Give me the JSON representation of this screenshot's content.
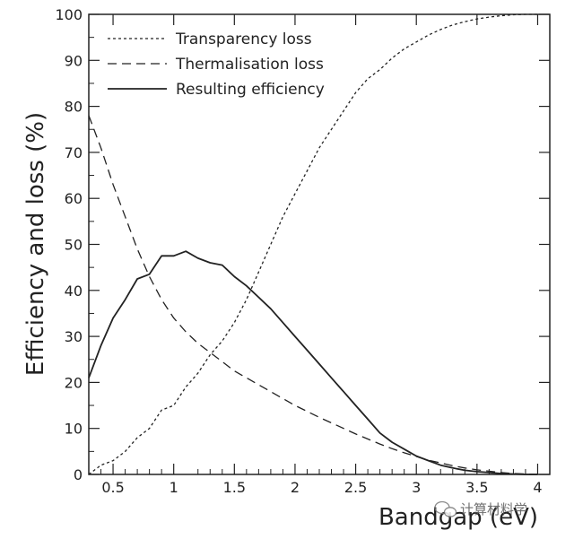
{
  "chart_data": {
    "type": "line",
    "xlabel": "Bandgap (eV)",
    "ylabel": "Efficiency and loss (%)",
    "xlim": [
      0.3,
      4.1
    ],
    "ylim": [
      0,
      100
    ],
    "x_ticks": [
      0.5,
      1,
      1.5,
      2,
      2.5,
      3,
      3.5,
      4
    ],
    "x_tick_labels": [
      "0.5",
      "1",
      "1.5",
      "2",
      "2.5",
      "3",
      "3.5",
      "4"
    ],
    "y_ticks": [
      0,
      10,
      20,
      30,
      40,
      50,
      60,
      70,
      80,
      90,
      100
    ],
    "y_tick_labels": [
      "0",
      "10",
      "20",
      "30",
      "40",
      "50",
      "60",
      "70",
      "80",
      "90",
      "100"
    ],
    "grid": false,
    "legend_position": "top-left",
    "series": [
      {
        "name": "Transparency loss",
        "style": "dotted",
        "x": [
          0.3,
          0.4,
          0.5,
          0.6,
          0.7,
          0.8,
          0.9,
          1.0,
          1.1,
          1.2,
          1.3,
          1.4,
          1.5,
          1.6,
          1.7,
          1.8,
          1.9,
          2.0,
          2.1,
          2.2,
          2.3,
          2.4,
          2.5,
          2.6,
          2.7,
          2.8,
          2.9,
          3.0,
          3.1,
          3.2,
          3.3,
          3.4,
          3.5,
          3.6,
          3.7,
          3.8,
          3.9,
          4.0
        ],
        "values": [
          0,
          2,
          3,
          5,
          8,
          10,
          14,
          15,
          19,
          22,
          26,
          29,
          33,
          38,
          44,
          50,
          56,
          61,
          66,
          71,
          75,
          79,
          83,
          86,
          88,
          90.5,
          92.5,
          94,
          95.5,
          96.7,
          97.7,
          98.4,
          99,
          99.4,
          99.7,
          99.9,
          100,
          100
        ]
      },
      {
        "name": "Thermalisation loss",
        "style": "dashed",
        "x": [
          0.3,
          0.4,
          0.5,
          0.6,
          0.7,
          0.8,
          0.9,
          1.0,
          1.1,
          1.2,
          1.3,
          1.4,
          1.5,
          1.6,
          1.7,
          1.8,
          1.9,
          2.0,
          2.1,
          2.2,
          2.3,
          2.4,
          2.5,
          2.6,
          2.7,
          2.8,
          2.9,
          3.0,
          3.1,
          3.2,
          3.3,
          3.4,
          3.5,
          3.6,
          3.7,
          3.8,
          3.9,
          4.0
        ],
        "values": [
          78,
          71,
          63,
          56,
          49,
          43,
          38,
          34,
          31,
          28.5,
          26.5,
          24.5,
          22.5,
          21,
          19.5,
          18,
          16.5,
          15,
          13.7,
          12.4,
          11.2,
          10,
          8.8,
          7.7,
          6.6,
          5.6,
          4.7,
          3.9,
          3.1,
          2.5,
          1.9,
          1.4,
          1.0,
          0.7,
          0.4,
          0.2,
          0.1,
          0
        ]
      },
      {
        "name": "Resulting efficiency",
        "style": "solid",
        "x": [
          0.3,
          0.4,
          0.5,
          0.6,
          0.7,
          0.8,
          0.9,
          1.0,
          1.1,
          1.2,
          1.3,
          1.4,
          1.5,
          1.6,
          1.7,
          1.8,
          1.9,
          2.0,
          2.1,
          2.2,
          2.3,
          2.4,
          2.5,
          2.6,
          2.7,
          2.8,
          2.9,
          3.0,
          3.1,
          3.2,
          3.3,
          3.4,
          3.5,
          3.6,
          3.7,
          3.8,
          3.9,
          4.0
        ],
        "values": [
          21,
          28,
          34,
          38,
          42.5,
          43.5,
          47.5,
          47.5,
          48.5,
          47,
          46,
          45.5,
          43,
          41,
          38.5,
          36,
          33,
          30,
          27,
          24,
          21,
          18,
          15,
          12,
          9,
          7,
          5.5,
          4,
          3,
          2,
          1.4,
          0.9,
          0.6,
          0.4,
          0.2,
          0.1,
          0,
          0
        ]
      }
    ]
  },
  "watermark": {
    "text": "计算材料学",
    "icon": "wechat-bubble-icon"
  }
}
